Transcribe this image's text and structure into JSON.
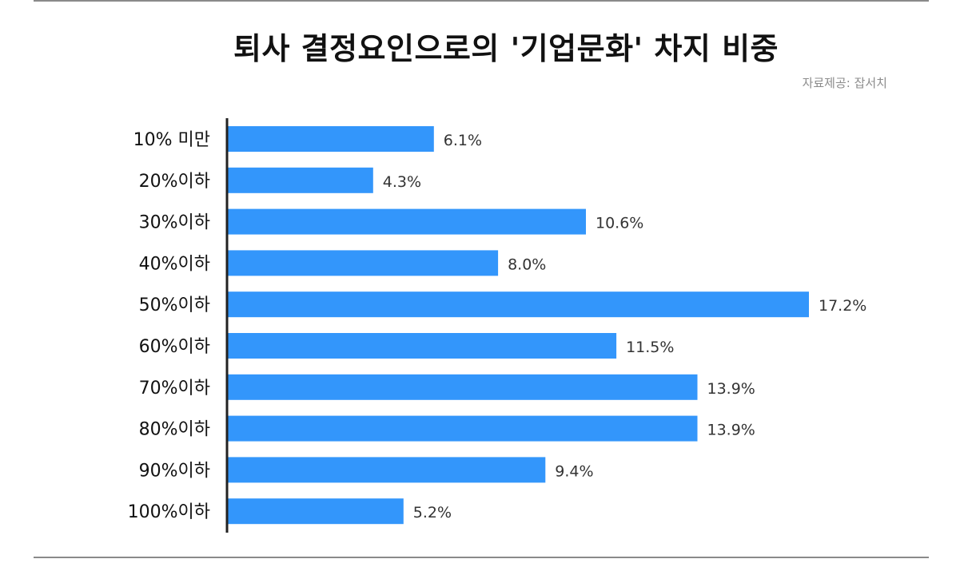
{
  "title": "퇴사 결정요인으로의 '기업문화' 차지 비중",
  "source": "자료제공: 잡서치",
  "colors": {
    "bar": "#3396fb",
    "axis": "#222222",
    "rule": "#8a8a8a"
  },
  "chart_data": {
    "type": "bar",
    "orientation": "horizontal",
    "title": "퇴사 결정요인으로의 '기업문화' 차지 비중",
    "categories": [
      "10% 미만",
      "20%이하",
      "30%이하",
      "40%이하",
      "50%이하",
      "60%이하",
      "70%이하",
      "80%이하",
      "90%이하",
      "100%이하"
    ],
    "values": [
      6.1,
      4.3,
      10.6,
      8.0,
      17.2,
      11.5,
      13.9,
      13.9,
      9.4,
      5.2
    ],
    "value_labels": [
      "6.1%",
      "4.3%",
      "10.6%",
      "8.0%",
      "17.2%",
      "11.5%",
      "13.9%",
      "13.9%",
      "9.4%",
      "5.2%"
    ],
    "xlim": [
      0,
      17.2
    ],
    "grid": false,
    "legend": "none"
  }
}
